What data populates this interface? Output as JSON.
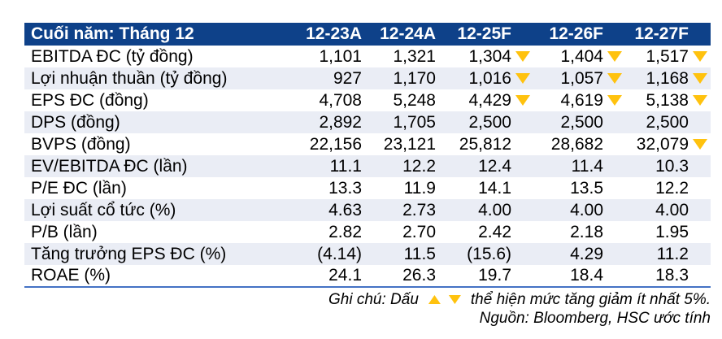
{
  "table": {
    "corner_label": "Cuối năm: Tháng 12",
    "columns": [
      "12-23A",
      "12-24A",
      "12-25F",
      "12-26F",
      "12-27F"
    ],
    "rows": [
      {
        "label": "EBITDA ĐC (tỷ đồng)",
        "values": [
          "1,101",
          "1,321",
          "1,304",
          "1,404",
          "1,517"
        ],
        "down": [
          false,
          false,
          true,
          true,
          true
        ]
      },
      {
        "label": "Lợi nhuận thuần (tỷ đồng)",
        "values": [
          "927",
          "1,170",
          "1,016",
          "1,057",
          "1,168"
        ],
        "down": [
          false,
          false,
          true,
          true,
          true
        ]
      },
      {
        "label": "EPS ĐC (đồng)",
        "values": [
          "4,708",
          "5,248",
          "4,429",
          "4,619",
          "5,138"
        ],
        "down": [
          false,
          false,
          true,
          true,
          true
        ]
      },
      {
        "label": "DPS (đồng)",
        "values": [
          "2,892",
          "1,705",
          "2,500",
          "2,500",
          "2,500"
        ],
        "down": [
          false,
          false,
          false,
          false,
          false
        ]
      },
      {
        "label": "BVPS (đồng)",
        "values": [
          "22,156",
          "23,121",
          "25,812",
          "28,682",
          "32,079"
        ],
        "down": [
          false,
          false,
          false,
          false,
          true
        ]
      },
      {
        "label": "EV/EBITDA ĐC (lần)",
        "values": [
          "11.1",
          "12.2",
          "12.4",
          "11.4",
          "10.3"
        ],
        "down": [
          false,
          false,
          false,
          false,
          false
        ]
      },
      {
        "label": "P/E ĐC (lần)",
        "values": [
          "13.3",
          "11.9",
          "14.1",
          "13.5",
          "12.2"
        ],
        "down": [
          false,
          false,
          false,
          false,
          false
        ]
      },
      {
        "label": "Lợi suất cổ tức (%)",
        "values": [
          "4.63",
          "2.73",
          "4.00",
          "4.00",
          "4.00"
        ],
        "down": [
          false,
          false,
          false,
          false,
          false
        ]
      },
      {
        "label": "P/B (lần)",
        "values": [
          "2.82",
          "2.70",
          "2.42",
          "2.18",
          "1.95"
        ],
        "down": [
          false,
          false,
          false,
          false,
          false
        ]
      },
      {
        "label": "Tăng trưởng EPS ĐC (%)",
        "values": [
          "(4.14)",
          "11.5",
          "(15.6)",
          "4.29",
          "11.2"
        ],
        "down": [
          false,
          false,
          false,
          false,
          false
        ]
      },
      {
        "label": "ROAE (%)",
        "values": [
          "24.1",
          "26.3",
          "19.7",
          "18.4",
          "18.3"
        ],
        "down": [
          false,
          false,
          false,
          false,
          false
        ]
      }
    ]
  },
  "notes": {
    "note_prefix": "Ghi chú: Dấu",
    "note_suffix": "thể hiện mức tăng giảm ít nhất 5%.",
    "source": "Nguồn: Bloomberg, HSC ước tính"
  },
  "colors": {
    "header_bg": "#0E4189",
    "header_text": "#FFFFFF",
    "row_alt_bg": "#EAEDF5",
    "bottom_rule": "#4472C4",
    "triangle": "#FFC20E"
  }
}
